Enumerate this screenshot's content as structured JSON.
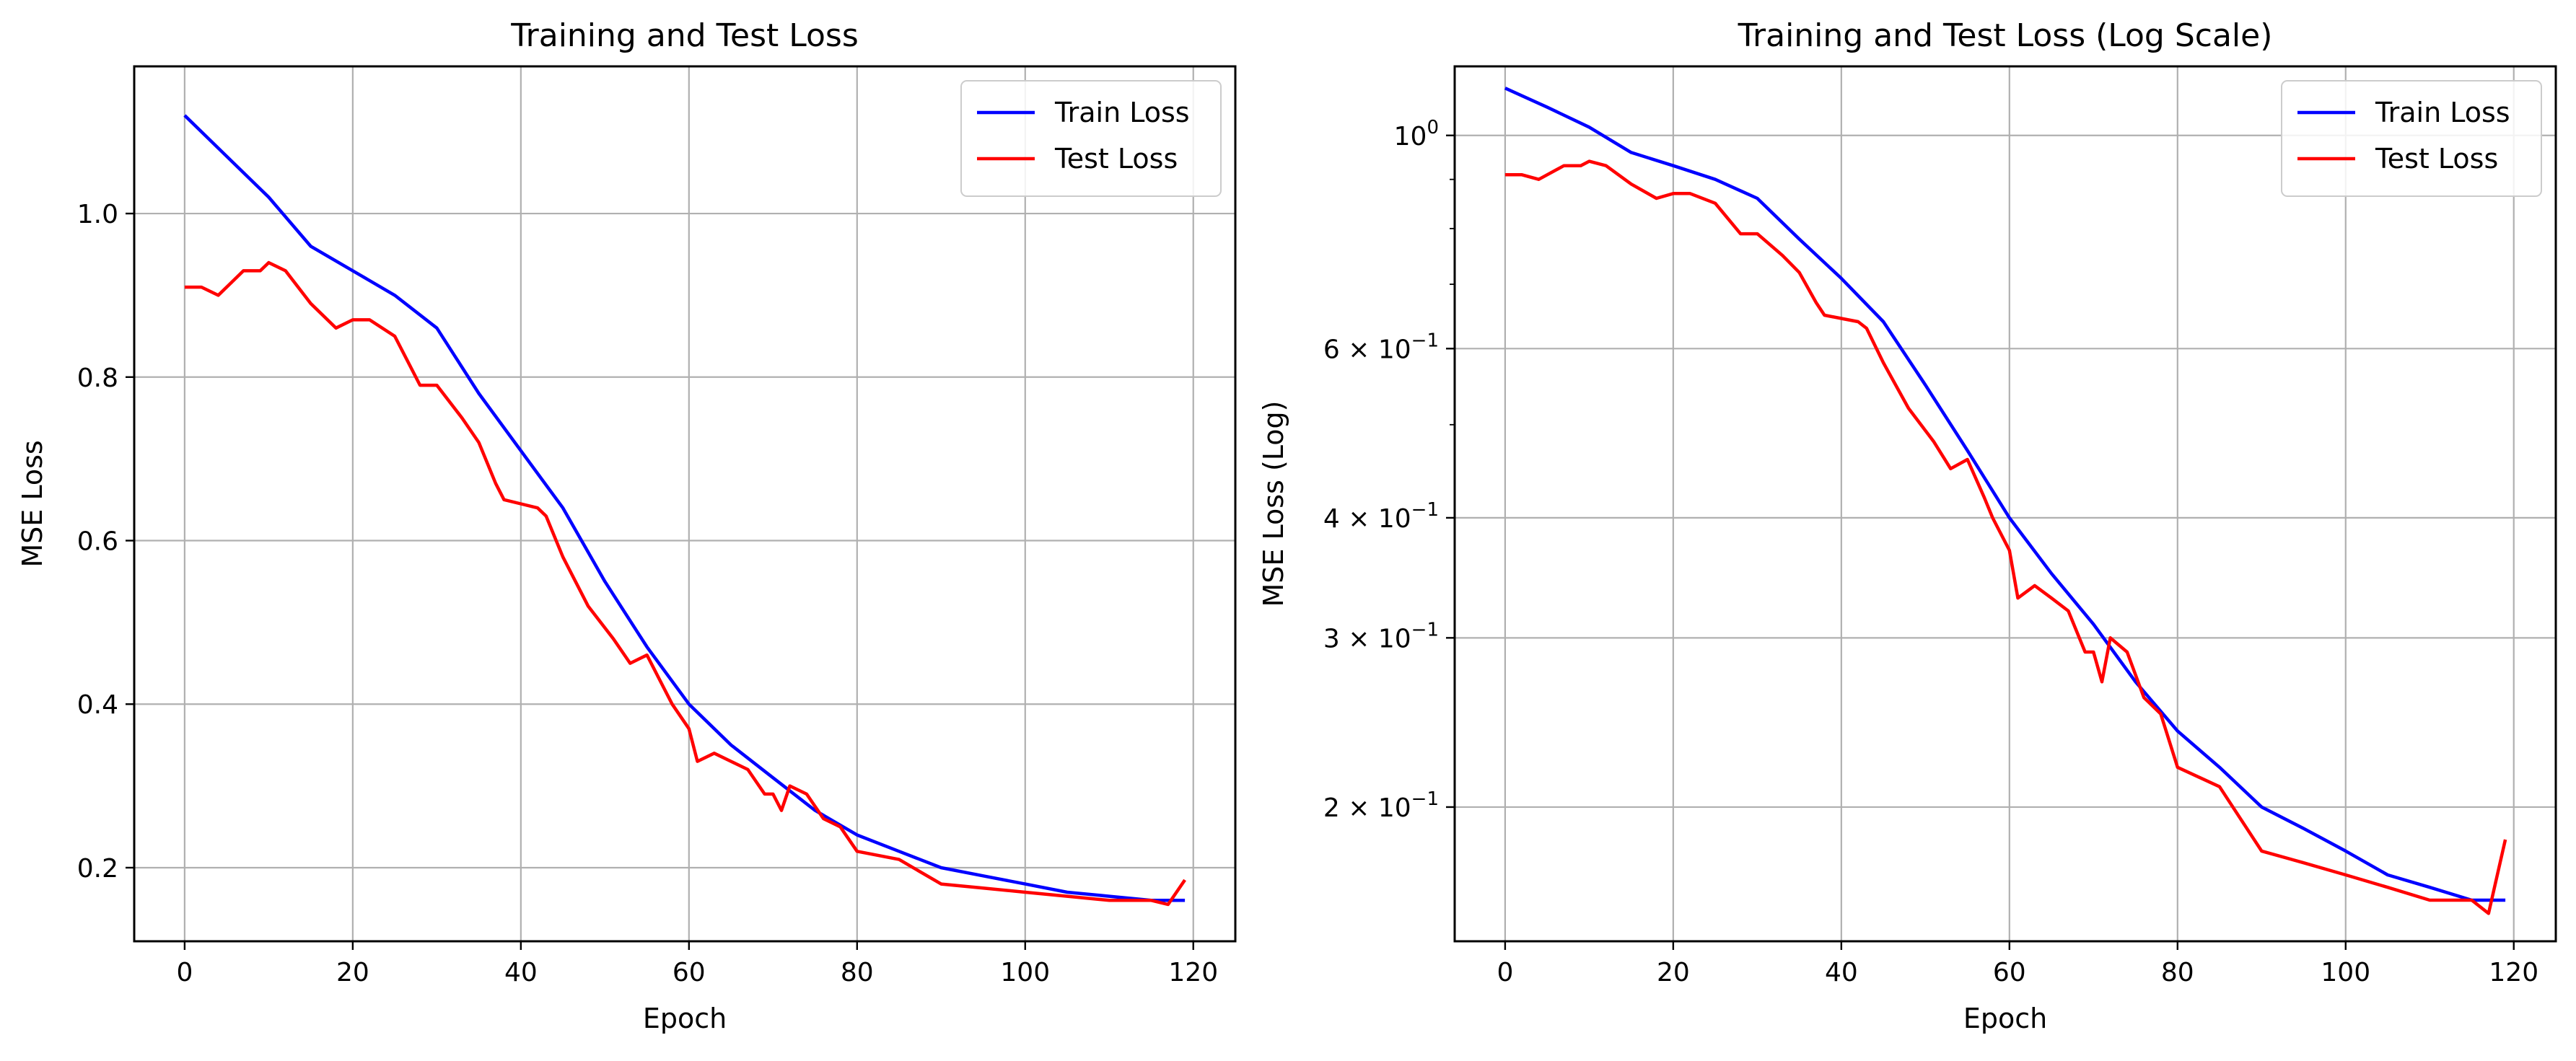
{
  "chart_data": [
    {
      "type": "line",
      "title": "Training and Test Loss",
      "xlabel": "Epoch",
      "ylabel": "MSE Loss",
      "xlim": [
        -6,
        125
      ],
      "ylim": [
        0.11,
        1.18
      ],
      "yscale": "linear",
      "grid": true,
      "legend_position": "top-right",
      "xticks": [
        0,
        20,
        40,
        60,
        80,
        100,
        120
      ],
      "xtick_labels": [
        "0",
        "20",
        "40",
        "60",
        "80",
        "100",
        "120"
      ],
      "yticks": [
        0.2,
        0.4,
        0.6,
        0.8,
        1.0
      ],
      "ytick_labels": [
        "0.2",
        "0.4",
        "0.6",
        "0.8",
        "1.0"
      ],
      "series": [
        {
          "name": "Train Loss",
          "color": "#0000ff",
          "x": [
            0,
            5,
            10,
            15,
            20,
            25,
            30,
            35,
            40,
            45,
            50,
            55,
            60,
            65,
            70,
            75,
            80,
            85,
            90,
            95,
            100,
            105,
            110,
            115,
            119
          ],
          "y": [
            1.12,
            1.07,
            1.02,
            0.96,
            0.93,
            0.9,
            0.86,
            0.78,
            0.71,
            0.64,
            0.55,
            0.47,
            0.4,
            0.35,
            0.31,
            0.27,
            0.24,
            0.22,
            0.2,
            0.19,
            0.18,
            0.17,
            0.165,
            0.16,
            0.16
          ]
        },
        {
          "name": "Test Loss",
          "color": "#ff0000",
          "x": [
            0,
            2,
            4,
            7,
            9,
            10,
            12,
            15,
            18,
            20,
            22,
            25,
            28,
            30,
            33,
            35,
            37,
            38,
            40,
            42,
            43,
            45,
            48,
            51,
            53,
            55,
            57,
            58,
            60,
            61,
            63,
            65,
            67,
            69,
            70,
            71,
            72,
            74,
            76,
            78,
            80,
            85,
            90,
            95,
            100,
            105,
            110,
            115,
            117,
            119
          ],
          "y": [
            0.91,
            0.91,
            0.9,
            0.93,
            0.93,
            0.94,
            0.93,
            0.89,
            0.86,
            0.87,
            0.87,
            0.85,
            0.79,
            0.79,
            0.75,
            0.72,
            0.67,
            0.65,
            0.645,
            0.64,
            0.63,
            0.58,
            0.52,
            0.48,
            0.45,
            0.46,
            0.42,
            0.4,
            0.37,
            0.33,
            0.34,
            0.33,
            0.32,
            0.29,
            0.29,
            0.27,
            0.3,
            0.29,
            0.26,
            0.25,
            0.22,
            0.21,
            0.18,
            0.175,
            0.17,
            0.165,
            0.16,
            0.16,
            0.155,
            0.185
          ]
        }
      ]
    },
    {
      "type": "line",
      "title": "Training and Test Loss (Log Scale)",
      "xlabel": "Epoch",
      "ylabel": "MSE Loss (Log)",
      "xlim": [
        -6,
        125
      ],
      "ylim": [
        0.145,
        1.18
      ],
      "yscale": "log",
      "grid": true,
      "legend_position": "top-right",
      "xticks": [
        0,
        20,
        40,
        60,
        80,
        100,
        120
      ],
      "xtick_labels": [
        "0",
        "20",
        "40",
        "60",
        "80",
        "100",
        "120"
      ],
      "yticks": [
        1.0,
        0.6,
        0.4,
        0.3,
        0.2
      ],
      "ytick_labels": [
        {
          "base": "10",
          "exp": "0"
        },
        {
          "base": "6 × 10",
          "exp": "−1"
        },
        {
          "base": "4 × 10",
          "exp": "−1"
        },
        {
          "base": "3 × 10",
          "exp": "−1"
        },
        {
          "base": "2 × 10",
          "exp": "−1"
        }
      ],
      "minor_yticks": [
        0.9,
        0.8,
        0.7,
        0.5
      ],
      "series": [
        {
          "name": "Train Loss",
          "color": "#0000ff",
          "x": [
            0,
            5,
            10,
            15,
            20,
            25,
            30,
            35,
            40,
            45,
            50,
            55,
            60,
            65,
            70,
            75,
            80,
            85,
            90,
            95,
            100,
            105,
            110,
            115,
            119
          ],
          "y": [
            1.12,
            1.07,
            1.02,
            0.96,
            0.93,
            0.9,
            0.86,
            0.78,
            0.71,
            0.64,
            0.55,
            0.47,
            0.4,
            0.35,
            0.31,
            0.27,
            0.24,
            0.22,
            0.2,
            0.19,
            0.18,
            0.17,
            0.165,
            0.16,
            0.16
          ]
        },
        {
          "name": "Test Loss",
          "color": "#ff0000",
          "x": [
            0,
            2,
            4,
            7,
            9,
            10,
            12,
            15,
            18,
            20,
            22,
            25,
            28,
            30,
            33,
            35,
            37,
            38,
            40,
            42,
            43,
            45,
            48,
            51,
            53,
            55,
            57,
            58,
            60,
            61,
            63,
            65,
            67,
            69,
            70,
            71,
            72,
            74,
            76,
            78,
            80,
            85,
            90,
            95,
            100,
            105,
            110,
            115,
            117,
            119
          ],
          "y": [
            0.91,
            0.91,
            0.9,
            0.93,
            0.93,
            0.94,
            0.93,
            0.89,
            0.86,
            0.87,
            0.87,
            0.85,
            0.79,
            0.79,
            0.75,
            0.72,
            0.67,
            0.65,
            0.645,
            0.64,
            0.63,
            0.58,
            0.52,
            0.48,
            0.45,
            0.46,
            0.42,
            0.4,
            0.37,
            0.33,
            0.34,
            0.33,
            0.32,
            0.29,
            0.29,
            0.27,
            0.3,
            0.29,
            0.26,
            0.25,
            0.22,
            0.21,
            0.18,
            0.175,
            0.17,
            0.165,
            0.16,
            0.16,
            0.155,
            0.185
          ]
        }
      ]
    }
  ]
}
